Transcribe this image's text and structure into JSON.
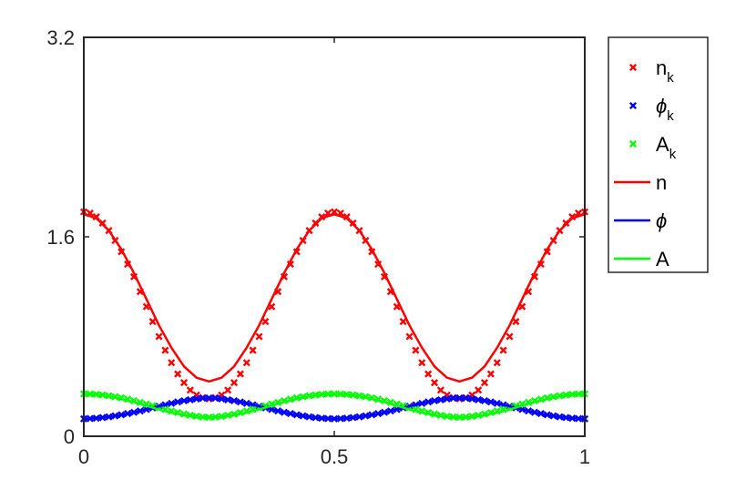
{
  "chart_data": {
    "type": "line",
    "title": "",
    "xlabel": "",
    "ylabel": "",
    "xlim": [
      0,
      1
    ],
    "ylim": [
      0,
      3.2
    ],
    "xticks": [
      0,
      0.5,
      1
    ],
    "xtick_labels": [
      "0",
      "0.5",
      "1"
    ],
    "yticks": [
      0,
      1.6,
      3.2
    ],
    "ytick_labels": [
      "0",
      "1.6",
      "3.2"
    ],
    "grid": false,
    "legend_position": "outside-right",
    "legend": [
      {
        "symbol": "marker",
        "base": "n",
        "sub": "k",
        "color": "#ff0000"
      },
      {
        "symbol": "marker",
        "base": "ϕ",
        "sub": "k",
        "color": "#0000ff"
      },
      {
        "symbol": "marker",
        "base": "A",
        "sub": "k",
        "color": "#00ff00"
      },
      {
        "symbol": "line",
        "base": "n",
        "sub": "",
        "color": "#ff0000"
      },
      {
        "symbol": "line",
        "base": "ϕ",
        "sub": "",
        "color": "#0000ff"
      },
      {
        "symbol": "line",
        "base": "A",
        "sub": "",
        "color": "#00ff00"
      }
    ],
    "series": [
      {
        "name": "n",
        "style": "line",
        "color": "#ff0000",
        "x": [
          0,
          0.025,
          0.05,
          0.075,
          0.1,
          0.125,
          0.15,
          0.175,
          0.2,
          0.225,
          0.25,
          0.275,
          0.3,
          0.325,
          0.35,
          0.375,
          0.4,
          0.425,
          0.45,
          0.475,
          0.5,
          0.525,
          0.55,
          0.575,
          0.6,
          0.625,
          0.65,
          0.675,
          0.7,
          0.725,
          0.75,
          0.775,
          0.8,
          0.825,
          0.85,
          0.875,
          0.9,
          0.925,
          0.95,
          0.975,
          1
        ],
        "y": [
          1.78,
          1.75,
          1.65,
          1.5,
          1.31,
          1.1,
          0.89,
          0.71,
          0.56,
          0.47,
          0.44,
          0.47,
          0.56,
          0.71,
          0.89,
          1.1,
          1.31,
          1.5,
          1.65,
          1.75,
          1.78,
          1.75,
          1.65,
          1.5,
          1.31,
          1.1,
          0.89,
          0.71,
          0.56,
          0.47,
          0.44,
          0.47,
          0.56,
          0.71,
          0.89,
          1.1,
          1.31,
          1.5,
          1.65,
          1.75,
          1.78
        ]
      },
      {
        "name": "ϕ",
        "style": "line",
        "color": "#0000ff",
        "x": [
          0,
          0.025,
          0.05,
          0.075,
          0.1,
          0.125,
          0.15,
          0.175,
          0.2,
          0.225,
          0.25,
          0.275,
          0.3,
          0.325,
          0.35,
          0.375,
          0.4,
          0.425,
          0.45,
          0.475,
          0.5,
          0.525,
          0.55,
          0.575,
          0.6,
          0.625,
          0.65,
          0.675,
          0.7,
          0.725,
          0.75,
          0.775,
          0.8,
          0.825,
          0.85,
          0.875,
          0.9,
          0.925,
          0.95,
          0.975,
          1
        ],
        "y": [
          0.14,
          0.145,
          0.155,
          0.17,
          0.19,
          0.215,
          0.24,
          0.265,
          0.285,
          0.3,
          0.305,
          0.3,
          0.285,
          0.265,
          0.24,
          0.215,
          0.19,
          0.17,
          0.155,
          0.145,
          0.14,
          0.145,
          0.155,
          0.17,
          0.19,
          0.215,
          0.24,
          0.265,
          0.285,
          0.3,
          0.305,
          0.3,
          0.285,
          0.265,
          0.24,
          0.215,
          0.19,
          0.17,
          0.155,
          0.145,
          0.14
        ]
      },
      {
        "name": "A",
        "style": "line",
        "color": "#00ff00",
        "x": [
          0,
          0.025,
          0.05,
          0.075,
          0.1,
          0.125,
          0.15,
          0.175,
          0.2,
          0.225,
          0.25,
          0.275,
          0.3,
          0.325,
          0.35,
          0.375,
          0.4,
          0.425,
          0.45,
          0.475,
          0.5,
          0.525,
          0.55,
          0.575,
          0.6,
          0.625,
          0.65,
          0.675,
          0.7,
          0.725,
          0.75,
          0.775,
          0.8,
          0.825,
          0.85,
          0.875,
          0.9,
          0.925,
          0.95,
          0.975,
          1
        ],
        "y": [
          0.34,
          0.335,
          0.32,
          0.3,
          0.275,
          0.245,
          0.215,
          0.19,
          0.17,
          0.155,
          0.15,
          0.155,
          0.17,
          0.19,
          0.215,
          0.245,
          0.275,
          0.3,
          0.32,
          0.335,
          0.34,
          0.335,
          0.32,
          0.3,
          0.275,
          0.245,
          0.215,
          0.19,
          0.17,
          0.155,
          0.15,
          0.155,
          0.17,
          0.19,
          0.215,
          0.245,
          0.275,
          0.3,
          0.32,
          0.335,
          0.34
        ]
      },
      {
        "name": "n_k",
        "style": "marker",
        "color": "#ff0000",
        "x": [
          0,
          0.0125,
          0.025,
          0.0375,
          0.05,
          0.0625,
          0.075,
          0.0875,
          0.1,
          0.1125,
          0.125,
          0.1375,
          0.15,
          0.1625,
          0.175,
          0.1875,
          0.2,
          0.2125,
          0.225,
          0.2375,
          0.25,
          0.2625,
          0.275,
          0.2875,
          0.3,
          0.3125,
          0.325,
          0.3375,
          0.35,
          0.3625,
          0.375,
          0.3875,
          0.4,
          0.4125,
          0.425,
          0.4375,
          0.45,
          0.4625,
          0.475,
          0.4875,
          0.5,
          0.5125,
          0.525,
          0.5375,
          0.55,
          0.5625,
          0.575,
          0.5875,
          0.6,
          0.6125,
          0.625,
          0.6375,
          0.65,
          0.6625,
          0.675,
          0.6875,
          0.7,
          0.7125,
          0.725,
          0.7375,
          0.75,
          0.7625,
          0.775,
          0.7875,
          0.8,
          0.8125,
          0.825,
          0.8375,
          0.85,
          0.8625,
          0.875,
          0.8875,
          0.9,
          0.9125,
          0.925,
          0.9375,
          0.95,
          0.9625,
          0.975,
          0.9875,
          1
        ],
        "y": [
          1.8,
          1.79,
          1.76,
          1.71,
          1.65,
          1.57,
          1.48,
          1.38,
          1.28,
          1.16,
          1.04,
          0.92,
          0.8,
          0.69,
          0.59,
          0.5,
          0.43,
          0.37,
          0.33,
          0.31,
          0.3,
          0.31,
          0.33,
          0.37,
          0.43,
          0.5,
          0.59,
          0.69,
          0.8,
          0.92,
          1.04,
          1.16,
          1.28,
          1.38,
          1.48,
          1.57,
          1.65,
          1.71,
          1.76,
          1.79,
          1.8,
          1.79,
          1.76,
          1.71,
          1.65,
          1.57,
          1.48,
          1.38,
          1.28,
          1.16,
          1.04,
          0.92,
          0.8,
          0.69,
          0.59,
          0.5,
          0.43,
          0.37,
          0.33,
          0.31,
          0.3,
          0.31,
          0.33,
          0.37,
          0.43,
          0.5,
          0.59,
          0.69,
          0.8,
          0.92,
          1.04,
          1.16,
          1.28,
          1.38,
          1.48,
          1.57,
          1.65,
          1.71,
          1.76,
          1.79,
          1.8
        ]
      },
      {
        "name": "ϕ_k",
        "style": "marker",
        "color": "#0000ff",
        "x": [
          0,
          0.0125,
          0.025,
          0.0375,
          0.05,
          0.0625,
          0.075,
          0.0875,
          0.1,
          0.1125,
          0.125,
          0.1375,
          0.15,
          0.1625,
          0.175,
          0.1875,
          0.2,
          0.2125,
          0.225,
          0.2375,
          0.25,
          0.2625,
          0.275,
          0.2875,
          0.3,
          0.3125,
          0.325,
          0.3375,
          0.35,
          0.3625,
          0.375,
          0.3875,
          0.4,
          0.4125,
          0.425,
          0.4375,
          0.45,
          0.4625,
          0.475,
          0.4875,
          0.5,
          0.5125,
          0.525,
          0.5375,
          0.55,
          0.5625,
          0.575,
          0.5875,
          0.6,
          0.6125,
          0.625,
          0.6375,
          0.65,
          0.6625,
          0.675,
          0.6875,
          0.7,
          0.7125,
          0.725,
          0.7375,
          0.75,
          0.7625,
          0.775,
          0.7875,
          0.8,
          0.8125,
          0.825,
          0.8375,
          0.85,
          0.8625,
          0.875,
          0.8875,
          0.9,
          0.9125,
          0.925,
          0.9375,
          0.95,
          0.9625,
          0.975,
          0.9875,
          1
        ],
        "y": [
          0.14,
          0.142,
          0.145,
          0.15,
          0.156,
          0.164,
          0.172,
          0.182,
          0.192,
          0.203,
          0.215,
          0.228,
          0.24,
          0.252,
          0.264,
          0.275,
          0.285,
          0.293,
          0.3,
          0.305,
          0.307,
          0.305,
          0.3,
          0.293,
          0.285,
          0.275,
          0.264,
          0.252,
          0.24,
          0.228,
          0.215,
          0.203,
          0.192,
          0.182,
          0.172,
          0.164,
          0.156,
          0.15,
          0.145,
          0.142,
          0.14,
          0.142,
          0.145,
          0.15,
          0.156,
          0.164,
          0.172,
          0.182,
          0.192,
          0.203,
          0.215,
          0.228,
          0.24,
          0.252,
          0.264,
          0.275,
          0.285,
          0.293,
          0.3,
          0.305,
          0.307,
          0.305,
          0.3,
          0.293,
          0.285,
          0.275,
          0.264,
          0.252,
          0.24,
          0.228,
          0.215,
          0.203,
          0.192,
          0.182,
          0.172,
          0.164,
          0.156,
          0.15,
          0.145,
          0.142,
          0.14
        ]
      },
      {
        "name": "A_k",
        "style": "marker",
        "color": "#00ff00",
        "x": [
          0,
          0.0125,
          0.025,
          0.0375,
          0.05,
          0.0625,
          0.075,
          0.0875,
          0.1,
          0.1125,
          0.125,
          0.1375,
          0.15,
          0.1625,
          0.175,
          0.1875,
          0.2,
          0.2125,
          0.225,
          0.2375,
          0.25,
          0.2625,
          0.275,
          0.2875,
          0.3,
          0.3125,
          0.325,
          0.3375,
          0.35,
          0.3625,
          0.375,
          0.3875,
          0.4,
          0.4125,
          0.425,
          0.4375,
          0.45,
          0.4625,
          0.475,
          0.4875,
          0.5,
          0.5125,
          0.525,
          0.5375,
          0.55,
          0.5625,
          0.575,
          0.5875,
          0.6,
          0.6125,
          0.625,
          0.6375,
          0.65,
          0.6625,
          0.675,
          0.6875,
          0.7,
          0.7125,
          0.725,
          0.7375,
          0.75,
          0.7625,
          0.775,
          0.7875,
          0.8,
          0.8125,
          0.825,
          0.8375,
          0.85,
          0.8625,
          0.875,
          0.8875,
          0.9,
          0.9125,
          0.925,
          0.9375,
          0.95,
          0.9625,
          0.975,
          0.9875,
          1
        ],
        "y": [
          0.34,
          0.339,
          0.336,
          0.331,
          0.325,
          0.317,
          0.308,
          0.297,
          0.285,
          0.272,
          0.258,
          0.244,
          0.23,
          0.216,
          0.202,
          0.19,
          0.178,
          0.168,
          0.16,
          0.155,
          0.152,
          0.155,
          0.16,
          0.168,
          0.178,
          0.19,
          0.202,
          0.216,
          0.23,
          0.244,
          0.258,
          0.272,
          0.285,
          0.297,
          0.308,
          0.317,
          0.325,
          0.331,
          0.336,
          0.339,
          0.34,
          0.339,
          0.336,
          0.331,
          0.325,
          0.317,
          0.308,
          0.297,
          0.285,
          0.272,
          0.258,
          0.244,
          0.23,
          0.216,
          0.202,
          0.19,
          0.178,
          0.168,
          0.16,
          0.155,
          0.152,
          0.155,
          0.16,
          0.168,
          0.178,
          0.19,
          0.202,
          0.216,
          0.23,
          0.244,
          0.258,
          0.272,
          0.285,
          0.297,
          0.308,
          0.317,
          0.325,
          0.331,
          0.336,
          0.339,
          0.34
        ]
      }
    ]
  }
}
